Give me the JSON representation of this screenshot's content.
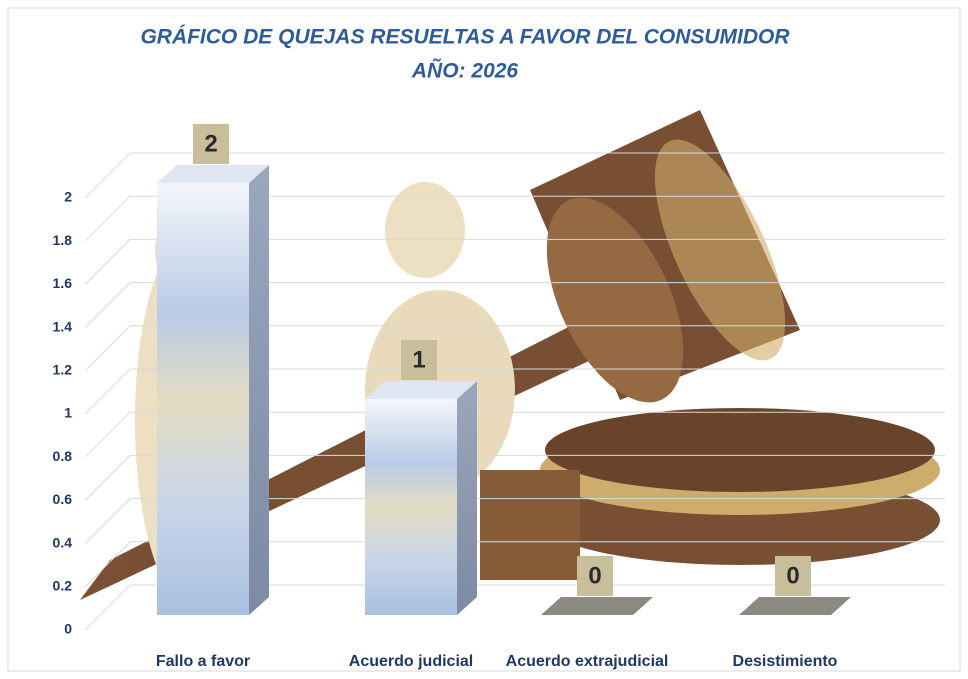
{
  "chart_data": {
    "type": "bar3d",
    "title": "GRÁFICO DE QUEJAS RESUELTAS A FAVOR DEL CONSUMIDOR",
    "subtitle": "AÑO: 2026",
    "categories": [
      "Fallo a favor",
      "Acuerdo judicial",
      "Acuerdo extrajudicial",
      "Desistimiento"
    ],
    "values": [
      2,
      1,
      0,
      0
    ],
    "ylim": [
      0,
      2
    ],
    "yticks": [
      0,
      0.2,
      0.4,
      0.6,
      0.8,
      1,
      1.2,
      1.4,
      1.6,
      1.8,
      2
    ],
    "grid": true
  }
}
